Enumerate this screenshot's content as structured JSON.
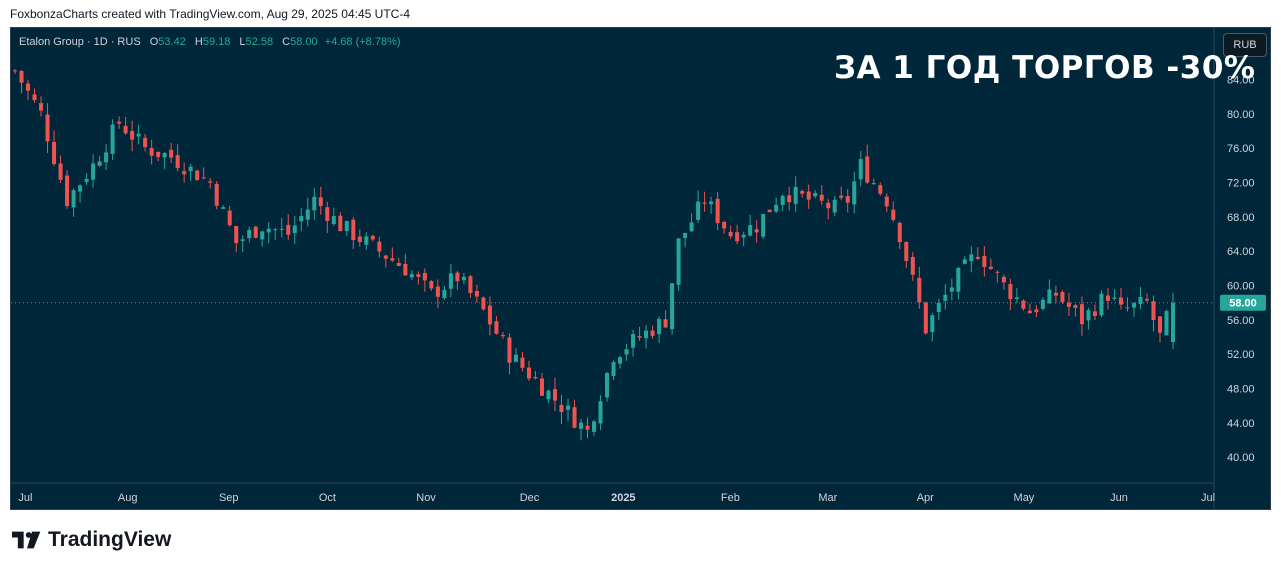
{
  "caption": "FoxbonzaCharts created with TradingView.com, Aug 29, 2025 04:45 UTC-4",
  "footer": {
    "brand": "TradingView"
  },
  "legend": {
    "symbol": "Etalon Group · 1D · RUS",
    "o_label": "O",
    "o_value": "53.42",
    "h_label": "H",
    "h_value": "59.18",
    "l_label": "L",
    "l_value": "52.58",
    "c_label": "C",
    "c_value": "58.00",
    "change": "+4.68 (+8.78%)"
  },
  "currency_button": "RUB",
  "headline": "ЗА 1 ГОД ТОРГОВ -30%",
  "colors": {
    "background": "#00263a",
    "up": "#26a69a",
    "down": "#ef5350",
    "text": "#d1d4dc"
  },
  "chart_data": {
    "type": "candlestick",
    "y_axis": {
      "ylim": [
        37,
        90
      ],
      "ticks": [
        "84.00",
        "80.00",
        "76.00",
        "72.00",
        "68.00",
        "64.00",
        "60.00",
        "56.00",
        "52.00",
        "48.00",
        "44.00",
        "40.00"
      ],
      "position": "right"
    },
    "x_axis": {
      "labels": [
        "Jul",
        "Aug",
        "Sep",
        "Oct",
        "Nov",
        "Dec",
        "2025",
        "Feb",
        "Mar",
        "Apr",
        "May",
        "Jun",
        "Jul"
      ],
      "bold_labels": [
        "2025"
      ]
    },
    "last_price": {
      "value": 58.0,
      "label": "58.00"
    },
    "close_path": [
      [
        0,
        85
      ],
      [
        4,
        80
      ],
      [
        8,
        70
      ],
      [
        12,
        74
      ],
      [
        16,
        79
      ],
      [
        20,
        76
      ],
      [
        24,
        75
      ],
      [
        30,
        72
      ],
      [
        34,
        65
      ],
      [
        38,
        67
      ],
      [
        42,
        66
      ],
      [
        46,
        70
      ],
      [
        50,
        67
      ],
      [
        56,
        64
      ],
      [
        60,
        62
      ],
      [
        64,
        59
      ],
      [
        68,
        61
      ],
      [
        72,
        57
      ],
      [
        76,
        52
      ],
      [
        80,
        49
      ],
      [
        84,
        46
      ],
      [
        88,
        43
      ],
      [
        92,
        52
      ],
      [
        96,
        54
      ],
      [
        100,
        56
      ],
      [
        102,
        65
      ],
      [
        106,
        70
      ],
      [
        110,
        66
      ],
      [
        114,
        67
      ],
      [
        118,
        71
      ],
      [
        122,
        70
      ],
      [
        126,
        69
      ],
      [
        128,
        70
      ],
      [
        130,
        74
      ],
      [
        134,
        70
      ],
      [
        136,
        66
      ],
      [
        140,
        55
      ],
      [
        144,
        60
      ],
      [
        148,
        64
      ],
      [
        152,
        60
      ],
      [
        156,
        57
      ],
      [
        160,
        59
      ],
      [
        164,
        56
      ],
      [
        168,
        59
      ],
      [
        170,
        57
      ],
      [
        174,
        58
      ],
      [
        176,
        54
      ],
      [
        178,
        58
      ]
    ],
    "candle_count": 178
  }
}
